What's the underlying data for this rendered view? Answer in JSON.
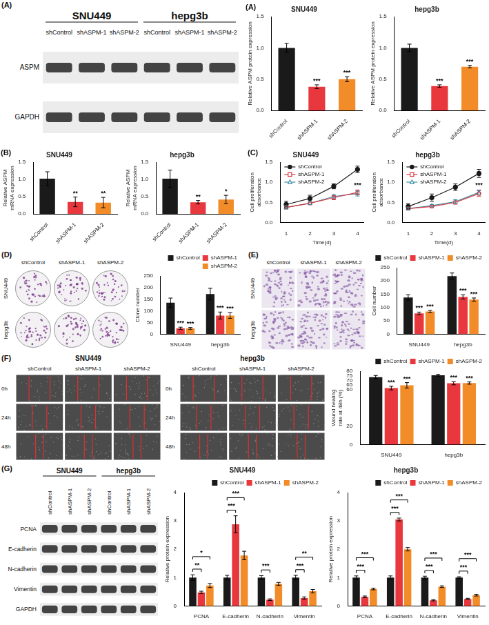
{
  "chart_data": [
    {
      "panel": "(A)",
      "type": "bar",
      "title": "SNU449",
      "y_label": "Relative ASPM protein expression",
      "categories": [
        "shControl",
        "shASPM-1",
        "shASPM-2"
      ],
      "values": [
        1.0,
        0.38,
        0.5
      ],
      "errors": [
        0.07,
        0.03,
        0.04
      ],
      "significance": [
        null,
        "***",
        "***"
      ],
      "colors": [
        "#1a1a1a",
        "#e8383d",
        "#f28c28"
      ],
      "ylim": [
        0,
        1.5
      ],
      "yticks": [
        {
          "value": 0,
          "label": "0.0"
        },
        0.5,
        {
          "value": 1,
          "label": "1.0"
        },
        1.5
      ],
      "grid": false
    },
    {
      "type": "bar",
      "title": "hepg3b",
      "y_label": "Relative ASPM protein expression",
      "categories": [
        "shControl",
        "shASPM-1",
        "shASPM-2"
      ],
      "values": [
        1.0,
        0.39,
        0.7
      ],
      "errors": [
        0.06,
        0.02,
        0.02
      ],
      "significance": [
        null,
        "***",
        "***"
      ],
      "colors": [
        "#1a1a1a",
        "#e8383d",
        "#f28c28"
      ],
      "ylim": [
        0,
        1.5
      ],
      "yticks": [
        {
          "value": 0,
          "label": "0.0"
        },
        0.5,
        {
          "value": 1,
          "label": "1.0"
        },
        1.5
      ],
      "grid": false
    },
    {
      "panel": "(B)",
      "type": "bar",
      "title": "SNU449",
      "y_label": "Relative ASPM mRNA expression",
      "categories": [
        "shControl",
        "shASPM-1",
        "shASPM-2"
      ],
      "values": [
        1.02,
        0.35,
        0.33
      ],
      "errors": [
        0.2,
        0.14,
        0.15
      ],
      "significance": [
        null,
        "**",
        "**"
      ],
      "colors": [
        "#1a1a1a",
        "#e8383d",
        "#f28c28"
      ],
      "ylim": [
        0,
        1.5
      ],
      "yticks": [
        {
          "value": 0,
          "label": "0.0"
        },
        0.5,
        {
          "value": 1,
          "label": "1.0"
        },
        1.5
      ],
      "grid": false
    },
    {
      "type": "bar",
      "title": "hepg3b",
      "y_label": "Relative ASPM mRNA expression",
      "categories": [
        "shControl",
        "shASPM-1",
        "shASPM-2"
      ],
      "values": [
        1.02,
        0.34,
        0.42
      ],
      "errors": [
        0.25,
        0.05,
        0.12
      ],
      "significance": [
        null,
        "**",
        "*"
      ],
      "colors": [
        "#1a1a1a",
        "#e8383d",
        "#f28c28"
      ],
      "ylim": [
        0,
        1.5
      ],
      "yticks": [
        {
          "value": 0,
          "label": "0.0"
        },
        0.5,
        {
          "value": 1,
          "label": "1.0"
        },
        1.5
      ],
      "grid": false
    },
    {
      "panel": "(C)",
      "type": "line",
      "title": "SNU449",
      "x_label": "Time(d)",
      "y_label": "Cell proliferation absorbance",
      "x": [
        1,
        2,
        3,
        4
      ],
      "series": [
        {
          "name": "shControl",
          "color": "#1a1a1a",
          "marker": "circle",
          "line_style": "solid",
          "values": [
            0.45,
            0.6,
            0.9,
            1.32
          ],
          "errors": [
            0.08,
            0.08,
            0.06,
            0.08
          ]
        },
        {
          "name": "shASPM-1",
          "color": "#d9363e",
          "marker": "square",
          "line_style": "solid",
          "values": [
            0.38,
            0.48,
            0.62,
            0.75
          ],
          "errors": [
            0.04,
            0.03,
            0.05,
            0.06
          ]
        },
        {
          "name": "shASPM-2",
          "color": "#3f8fa6",
          "marker": "triangle",
          "line_style": "solid",
          "values": [
            0.38,
            0.48,
            0.65,
            0.72
          ],
          "errors": [
            0.04,
            0.03,
            0.04,
            0.06
          ]
        }
      ],
      "annotations": [
        {
          "x": 4,
          "text": "***"
        }
      ],
      "xlim": [
        0.75,
        4.25
      ],
      "xticks": [
        1,
        2,
        3,
        4
      ],
      "ylim": [
        0,
        1.5
      ],
      "yticks": [
        {
          "value": 0,
          "label": "0.0"
        },
        0.5,
        {
          "value": 1,
          "label": "1.0"
        },
        1.5
      ],
      "legend": "top-left",
      "grid": false
    },
    {
      "type": "line",
      "title": "hepg3b",
      "x_label": "Time(d)",
      "y_label": "Cell proliferation absorbance",
      "x": [
        1,
        2,
        3,
        4
      ],
      "series": [
        {
          "name": "shControl",
          "color": "#1a1a1a",
          "marker": "circle",
          "line_style": "solid",
          "values": [
            0.4,
            0.62,
            0.88,
            1.22
          ],
          "errors": [
            0.07,
            0.09,
            0.08,
            0.1
          ]
        },
        {
          "name": "shASPM-1",
          "color": "#d9363e",
          "marker": "square",
          "line_style": "solid",
          "values": [
            0.35,
            0.4,
            0.5,
            0.72
          ],
          "errors": [
            0.04,
            0.03,
            0.04,
            0.07
          ]
        },
        {
          "name": "shASPM-2",
          "color": "#3f8fa6",
          "marker": "triangle",
          "line_style": "solid",
          "values": [
            0.35,
            0.42,
            0.52,
            0.75
          ],
          "errors": [
            0.03,
            0.03,
            0.05,
            0.06
          ]
        }
      ],
      "annotations": [
        {
          "x": 4,
          "text": "***"
        }
      ],
      "xlim": [
        0.75,
        4.25
      ],
      "xticks": [
        1,
        2,
        3,
        4
      ],
      "ylim": [
        0,
        1.5
      ],
      "yticks": [
        {
          "value": 0,
          "label": "0.0"
        },
        0.5,
        {
          "value": 1,
          "label": "1.0"
        },
        1.5
      ],
      "legend": "top-left",
      "grid": false
    },
    {
      "type": "bar",
      "y_label": "Clone number",
      "categories": [
        "SNU449",
        "hepg3b"
      ],
      "series": [
        {
          "name": "shControl",
          "color": "#1a1a1a",
          "values": [
            135,
            172
          ],
          "errors": [
            20,
            25
          ],
          "significance": [
            null,
            null
          ]
        },
        {
          "name": "shASPM-1",
          "color": "#e8383d",
          "values": [
            25,
            80
          ],
          "errors": [
            5,
            15
          ],
          "significance": [
            "***",
            "***"
          ]
        },
        {
          "name": "shASPM-2",
          "color": "#f28c28",
          "values": [
            25,
            80
          ],
          "errors": [
            4,
            12
          ],
          "significance": [
            "***",
            "***"
          ]
        }
      ],
      "ylim": [
        0,
        250
      ],
      "yticks": [
        0,
        50,
        100,
        150,
        200,
        250
      ],
      "legend": "top-right",
      "grid": false
    },
    {
      "type": "bar",
      "y_label": "Cell number",
      "categories": [
        "SNU449",
        "hepg3b"
      ],
      "series": [
        {
          "name": "shControl",
          "color": "#1a1a1a",
          "values": [
            138,
            218
          ],
          "errors": [
            10,
            12
          ],
          "significance": [
            null,
            null
          ]
        },
        {
          "name": "shASPM-1",
          "color": "#e8383d",
          "values": [
            78,
            140
          ],
          "errors": [
            5,
            8
          ],
          "significance": [
            "***",
            "***"
          ]
        },
        {
          "name": "shASPM-2",
          "color": "#f28c28",
          "values": [
            85,
            130
          ],
          "errors": [
            4,
            6
          ],
          "significance": [
            "***",
            "***"
          ]
        }
      ],
      "ylim": [
        0,
        250
      ],
      "yticks": [
        0,
        50,
        100,
        150,
        200,
        250
      ],
      "legend": "top-right",
      "grid": false
    },
    {
      "type": "bar",
      "y_label": "Wound healing rate at 48h (%)",
      "categories": [
        "SNU449",
        "hepg3b"
      ],
      "series": [
        {
          "name": "shControl",
          "color": "#1a1a1a",
          "values": [
            73.5,
            75.5
          ],
          "errors": [
            1.8,
            1.0
          ],
          "significance": [
            null,
            null
          ]
        },
        {
          "name": "shASPM-1",
          "color": "#e8383d",
          "values": [
            61.5,
            66.8
          ],
          "errors": [
            2.0,
            1.7
          ],
          "significance": [
            "***",
            "***"
          ]
        },
        {
          "name": "shASPM-2",
          "color": "#f28c28",
          "values": [
            64.5,
            67.0
          ],
          "errors": [
            3.0,
            1.2
          ],
          "significance": [
            "***",
            "***"
          ]
        }
      ],
      "ylim": [
        0,
        80
      ],
      "yticks": [
        0,
        20,
        60,
        65,
        70,
        75,
        80
      ],
      "legend": "top-right",
      "grid": false
    },
    {
      "type": "bar",
      "title": "SNU449",
      "y_label": "Relative protein expression",
      "categories": [
        "PCNA",
        "E-cadherin",
        "N-cadherin",
        "Vimentin"
      ],
      "series": [
        {
          "name": "shControl",
          "color": "#1a1a1a",
          "values": [
            1.0,
            1.0,
            1.0,
            1.0
          ],
          "errors": [
            0.1,
            0.08,
            0.07,
            0.08
          ]
        },
        {
          "name": "shASPM-1",
          "color": "#e8383d",
          "values": [
            0.48,
            2.88,
            0.22,
            0.28
          ],
          "errors": [
            0.04,
            0.3,
            0.03,
            0.04
          ]
        },
        {
          "name": "shASPM-2",
          "color": "#f28c28",
          "values": [
            0.72,
            1.78,
            0.78,
            0.52
          ],
          "errors": [
            0.07,
            0.15,
            0.05,
            0.06
          ]
        }
      ],
      "comparisons": [
        {
          "category": "PCNA",
          "pair": [
            "shControl",
            "shASPM-1"
          ],
          "label": "**"
        },
        {
          "category": "PCNA",
          "pair": [
            "shControl",
            "shASPM-2"
          ],
          "label": "*"
        },
        {
          "category": "E-cadherin",
          "pair": [
            "shControl",
            "shASPM-1"
          ],
          "label": "***"
        },
        {
          "category": "E-cadherin",
          "pair": [
            "shControl",
            "shASPM-2"
          ],
          "label": "***"
        },
        {
          "category": "N-cadherin",
          "pair": [
            "shControl",
            "shASPM-1"
          ],
          "label": "***"
        },
        {
          "category": "Vimentin",
          "pair": [
            "shControl",
            "shASPM-1"
          ],
          "label": "***"
        },
        {
          "category": "Vimentin",
          "pair": [
            "shControl",
            "shASPM-2"
          ],
          "label": "**"
        }
      ],
      "ylim": [
        0,
        4
      ],
      "yticks": [
        0,
        1,
        2,
        3,
        4
      ],
      "legend": "top-right",
      "grid": false
    },
    {
      "type": "bar",
      "title": "hepg3b",
      "y_label": "Relative protein expression",
      "categories": [
        "PCNA",
        "E-cadherin",
        "N-cadherin",
        "Vimentin"
      ],
      "series": [
        {
          "name": "shControl",
          "color": "#1a1a1a",
          "values": [
            1.0,
            1.0,
            1.0,
            1.0
          ],
          "errors": [
            0.06,
            0.06,
            0.05,
            0.03
          ]
        },
        {
          "name": "shASPM-1",
          "color": "#e8383d",
          "values": [
            0.32,
            3.05,
            0.2,
            0.25
          ],
          "errors": [
            0.03,
            0.05,
            0.02,
            0.02
          ]
        },
        {
          "name": "shASPM-2",
          "color": "#f28c28",
          "values": [
            0.6,
            2.0,
            0.68,
            0.38
          ],
          "errors": [
            0.03,
            0.06,
            0.03,
            0.03
          ]
        }
      ],
      "comparisons": [
        {
          "category": "PCNA",
          "pair": [
            "shControl",
            "shASPM-1"
          ],
          "label": "***"
        },
        {
          "category": "PCNA",
          "pair": [
            "shControl",
            "shASPM-2"
          ],
          "label": "***"
        },
        {
          "category": "E-cadherin",
          "pair": [
            "shControl",
            "shASPM-1"
          ],
          "label": "***"
        },
        {
          "category": "E-cadherin",
          "pair": [
            "shControl",
            "shASPM-2"
          ],
          "label": "***"
        },
        {
          "category": "N-cadherin",
          "pair": [
            "shControl",
            "shASPM-1"
          ],
          "label": "***"
        },
        {
          "category": "N-cadherin",
          "pair": [
            "shControl",
            "shASPM-2"
          ],
          "label": "***"
        },
        {
          "category": "Vimentin",
          "pair": [
            "shControl",
            "shASPM-1"
          ],
          "label": "***"
        },
        {
          "category": "Vimentin",
          "pair": [
            "shControl",
            "shASPM-2"
          ],
          "label": "***"
        }
      ],
      "ylim": [
        0,
        4
      ],
      "yticks": [
        0,
        1,
        2,
        3,
        4
      ],
      "legend": "top-right",
      "grid": false
    }
  ],
  "images": [
    {
      "panel": "(A)",
      "kind": "blot",
      "groups": [
        "SNU449",
        "hepg3b"
      ],
      "lanes": [
        "shControl",
        "shASPM-1",
        "shASPM-2",
        "shControl",
        "shASPM-1",
        "shASPM-2"
      ],
      "rows": [
        "ASPM",
        "GAPDH"
      ]
    },
    {
      "panel": "(D)",
      "kind": "colony",
      "columns": [
        "shControl",
        "shASPM-1",
        "shASPM-2"
      ],
      "rows": [
        "SNU449",
        "hepg3b"
      ]
    },
    {
      "panel": "(E)",
      "kind": "transwell",
      "columns": [
        "shControl",
        "shASPM-1",
        "shASPM-2"
      ],
      "rows": [
        "SNU449",
        "hepg3b"
      ]
    },
    {
      "panel": "(F)",
      "kind": "wound",
      "title": "SNU449",
      "columns": [
        "shControl",
        "shASPM-1",
        "shASPM-2"
      ],
      "rows": [
        "0h",
        "24h",
        "48h"
      ]
    },
    {
      "kind": "wound",
      "title": "hepg3b",
      "columns": [
        "shControl",
        "shASPM-1",
        "shASPM-2"
      ],
      "rows": [
        "0h",
        "24h",
        "48h"
      ]
    },
    {
      "panel": "(G)",
      "kind": "blot",
      "groups": [
        "SNU449",
        "hepg3b"
      ],
      "lanes": [
        "shControl",
        "shASPM-1",
        "shASPM-2",
        "shControl",
        "shASPM-1",
        "shASPM-2"
      ],
      "rows": [
        "PCNA",
        "E-cadherin",
        "N-cadherin",
        "Vimentin",
        "GAPDH"
      ]
    }
  ]
}
